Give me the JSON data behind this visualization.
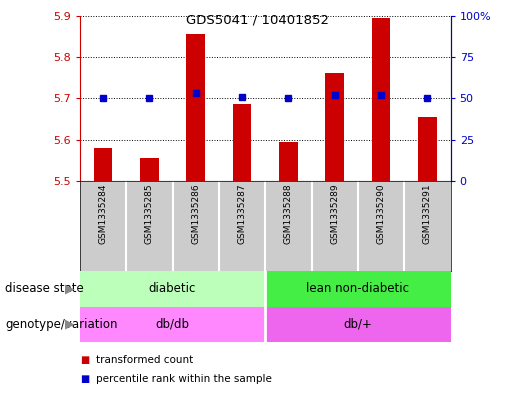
{
  "title": "GDS5041 / 10401852",
  "samples": [
    "GSM1335284",
    "GSM1335285",
    "GSM1335286",
    "GSM1335287",
    "GSM1335288",
    "GSM1335289",
    "GSM1335290",
    "GSM1335291"
  ],
  "transformed_count": [
    5.58,
    5.555,
    5.855,
    5.685,
    5.595,
    5.76,
    5.895,
    5.655
  ],
  "percentile_rank": [
    50,
    50,
    53,
    51,
    50,
    52,
    52,
    50
  ],
  "ylim_left": [
    5.5,
    5.9
  ],
  "ylim_right": [
    0,
    100
  ],
  "yticks_left": [
    5.5,
    5.6,
    5.7,
    5.8,
    5.9
  ],
  "yticks_right": [
    0,
    25,
    50,
    75,
    100
  ],
  "bar_color": "#cc0000",
  "dot_color": "#0000cc",
  "bar_width": 0.4,
  "disease_state_labels": [
    "diabetic",
    "lean non-diabetic"
  ],
  "disease_state_groups": [
    4,
    4
  ],
  "disease_state_colors": [
    "#bbffbb",
    "#44ee44"
  ],
  "genotype_labels": [
    "db/db",
    "db/+"
  ],
  "genotype_colors": [
    "#ff88ff",
    "#ee66ee"
  ],
  "legend_items": [
    "transformed count",
    "percentile rank within the sample"
  ],
  "legend_colors": [
    "#cc0000",
    "#0000cc"
  ],
  "background_color": "#ffffff",
  "plot_bg_color": "#ffffff",
  "tick_label_color_left": "#cc0000",
  "tick_label_color_right": "#0000cc",
  "label_row1": "disease state",
  "label_row2": "genotype/variation",
  "sample_box_color": "#cccccc",
  "sample_box_sep_color": "#ffffff"
}
